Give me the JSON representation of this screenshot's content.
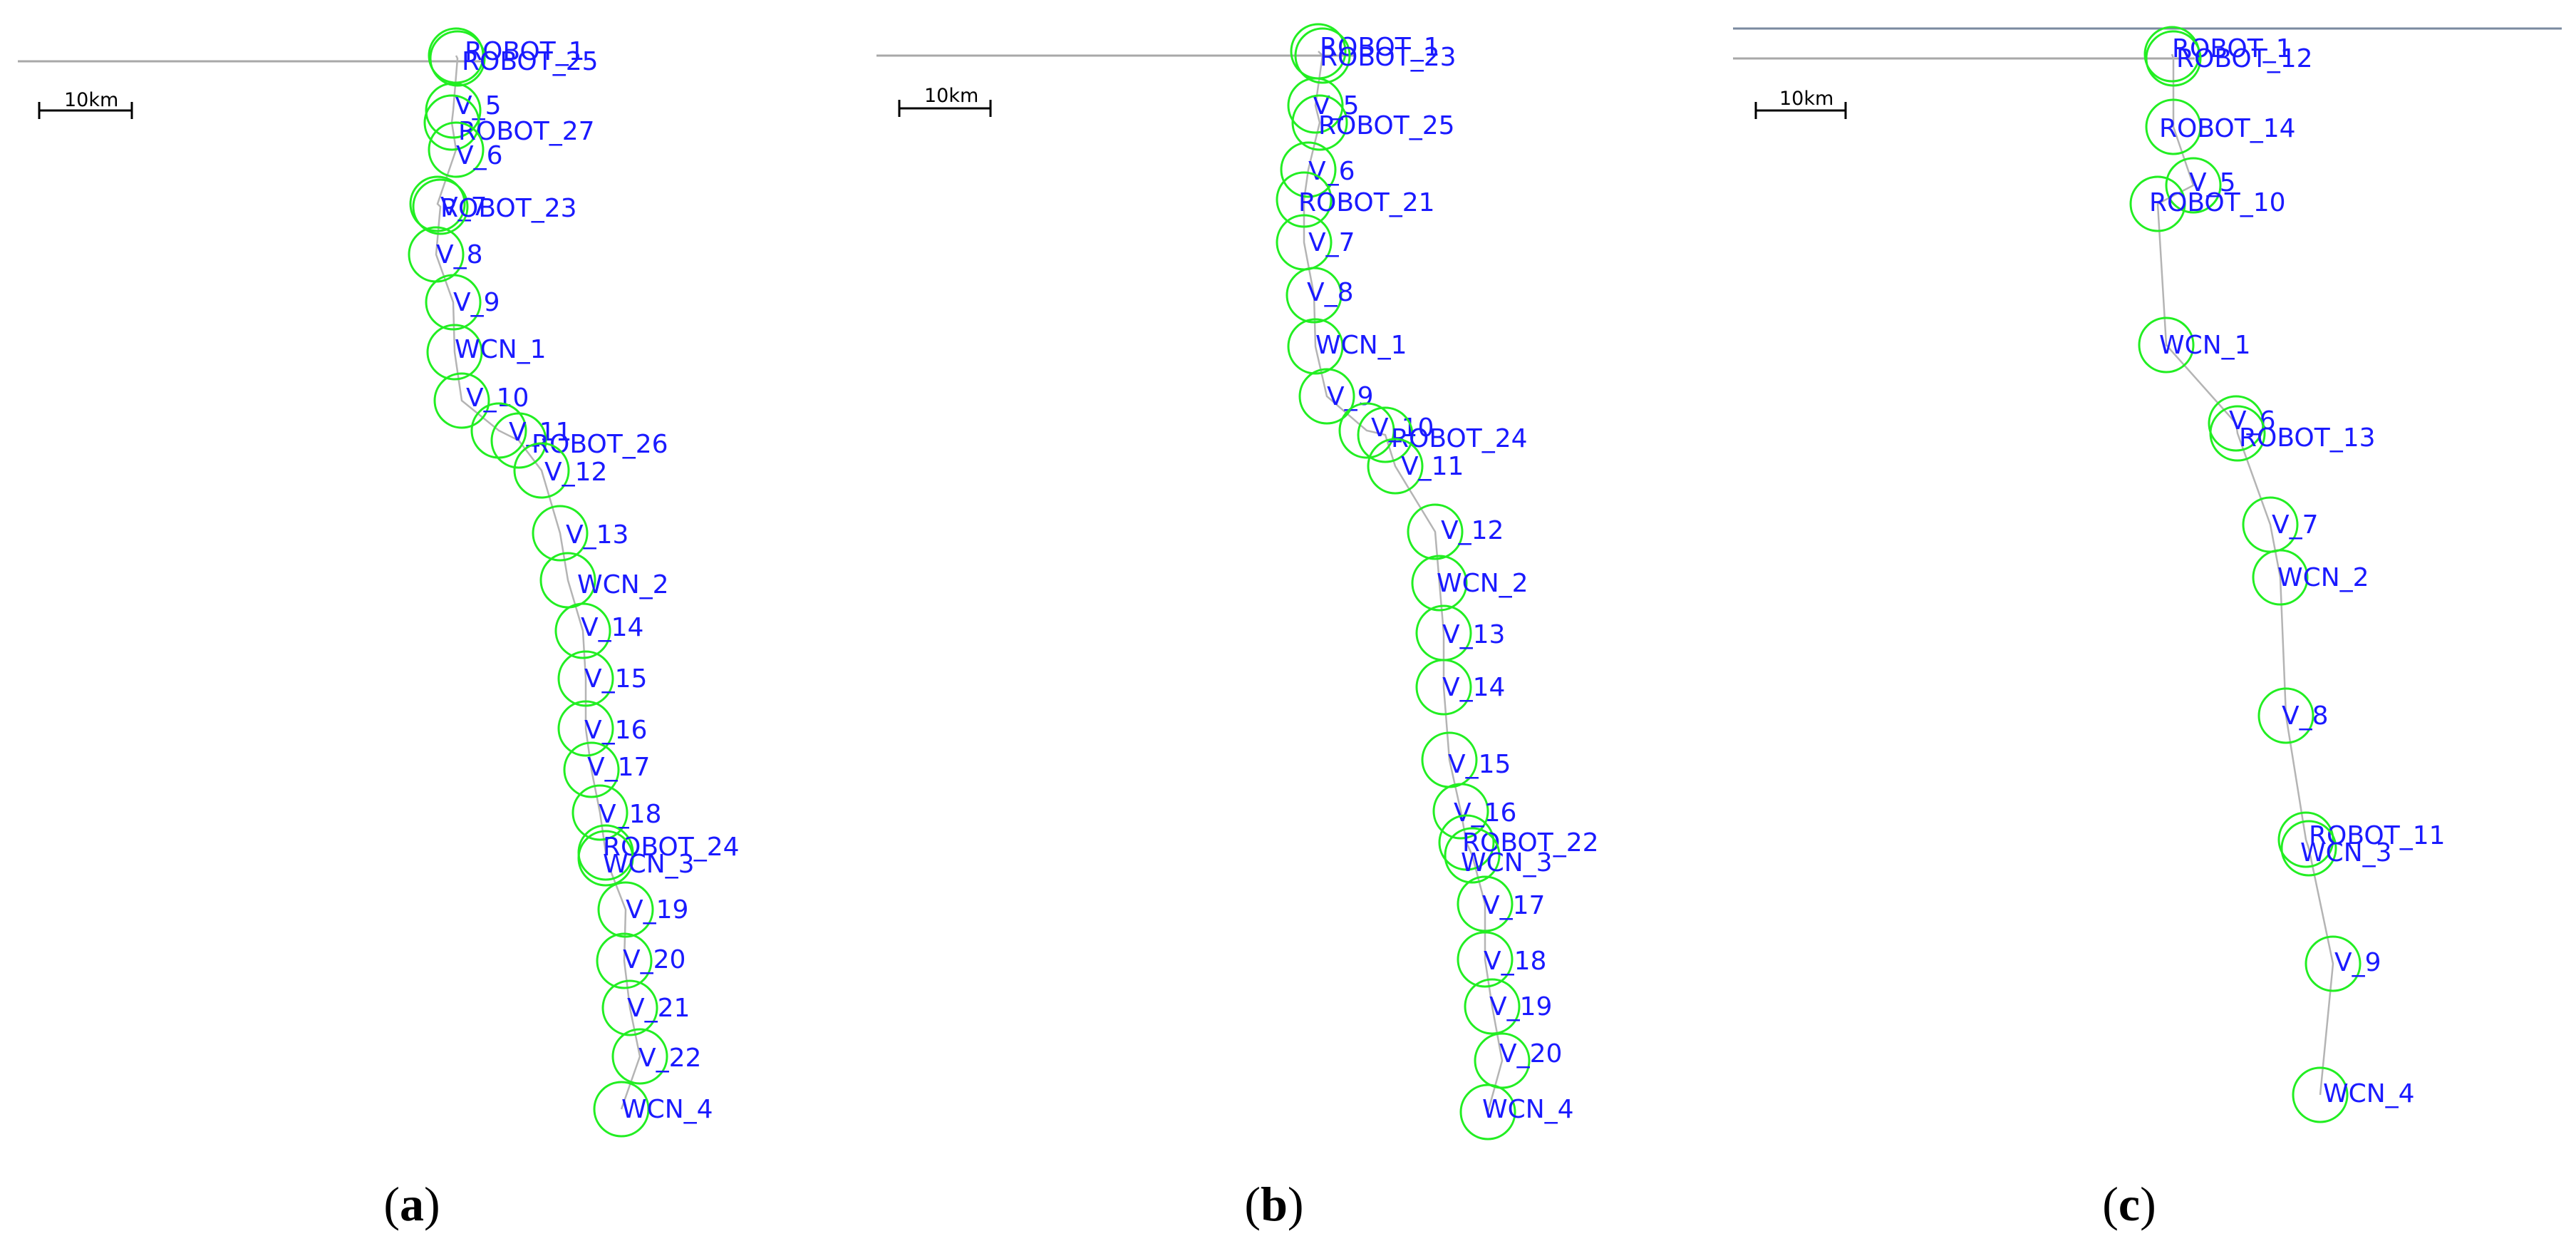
{
  "colors": {
    "node_circle": "#22ee22",
    "label": "#1a1aff",
    "link": "#b4b4b4",
    "edge_line": "#a8a8a8",
    "frame_top": "#7a8aa0",
    "scale": "#000000",
    "caption": "#000000"
  },
  "panels": [
    {
      "id": "a",
      "caption_letter": "a",
      "caption_open": "(",
      "caption_close": ")",
      "scale_label": "10km",
      "nodes": [
        {
          "label": "ROBOT_1"
        },
        {
          "label": "ROBOT_25"
        },
        {
          "label": "V_5"
        },
        {
          "label": "ROBOT_27"
        },
        {
          "label": "V_6"
        },
        {
          "label": "V_7"
        },
        {
          "label": "ROBOT_23"
        },
        {
          "label": "V_8"
        },
        {
          "label": "V_9"
        },
        {
          "label": "WCN_1"
        },
        {
          "label": "V_10"
        },
        {
          "label": "V_11"
        },
        {
          "label": "ROBOT_26"
        },
        {
          "label": "V_12"
        },
        {
          "label": "V_13"
        },
        {
          "label": "WCN_2"
        },
        {
          "label": "V_14"
        },
        {
          "label": "V_15"
        },
        {
          "label": "V_16"
        },
        {
          "label": "V_17"
        },
        {
          "label": "V_18"
        },
        {
          "label": "ROBOT_24"
        },
        {
          "label": "WCN_3"
        },
        {
          "label": "V_19"
        },
        {
          "label": "V_20"
        },
        {
          "label": "V_21"
        },
        {
          "label": "V_22"
        },
        {
          "label": "WCN_4"
        }
      ]
    },
    {
      "id": "b",
      "caption_letter": "b",
      "caption_open": "(",
      "caption_close": ")",
      "scale_label": "10km",
      "nodes": [
        {
          "label": "ROBOT_1"
        },
        {
          "label": "ROBOT_23"
        },
        {
          "label": "V_5"
        },
        {
          "label": "ROBOT_25"
        },
        {
          "label": "V_6"
        },
        {
          "label": "ROBOT_21"
        },
        {
          "label": "V_7"
        },
        {
          "label": "V_8"
        },
        {
          "label": "WCN_1"
        },
        {
          "label": "V_9"
        },
        {
          "label": "V_10"
        },
        {
          "label": "ROBOT_24"
        },
        {
          "label": "V_11"
        },
        {
          "label": "V_12"
        },
        {
          "label": "WCN_2"
        },
        {
          "label": "V_13"
        },
        {
          "label": "V_14"
        },
        {
          "label": "V_15"
        },
        {
          "label": "V_16"
        },
        {
          "label": "ROBOT_22"
        },
        {
          "label": "WCN_3"
        },
        {
          "label": "V_17"
        },
        {
          "label": "V_18"
        },
        {
          "label": "V_19"
        },
        {
          "label": "V_20"
        },
        {
          "label": "WCN_4"
        }
      ]
    },
    {
      "id": "c",
      "caption_letter": "c",
      "caption_open": "(",
      "caption_close": ")",
      "scale_label": "10km",
      "nodes": [
        {
          "label": "ROBOT_1"
        },
        {
          "label": "ROBOT_12"
        },
        {
          "label": "ROBOT_14"
        },
        {
          "label": "V_5"
        },
        {
          "label": "ROBOT_10"
        },
        {
          "label": "WCN_1"
        },
        {
          "label": "V_6"
        },
        {
          "label": "ROBOT_13"
        },
        {
          "label": "V_7"
        },
        {
          "label": "WCN_2"
        },
        {
          "label": "V_8"
        },
        {
          "label": "ROBOT_11"
        },
        {
          "label": "WCN_3"
        },
        {
          "label": "V_9"
        },
        {
          "label": "WCN_4"
        }
      ]
    }
  ]
}
